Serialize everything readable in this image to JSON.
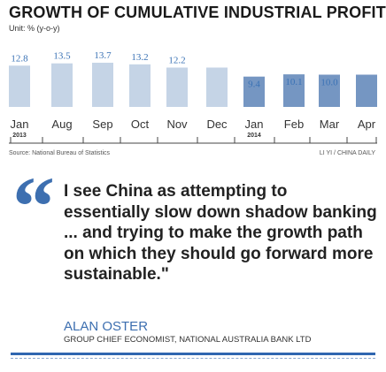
{
  "chart_data": {
    "type": "bar",
    "title": "GROWTH OF CUMULATIVE INDUSTRIAL PROFITS",
    "unit_label": "Unit: % (y-o-y)",
    "categories": [
      "Jan",
      "Aug",
      "Sep",
      "Oct",
      "Nov",
      "Dec",
      "Jan",
      "Feb",
      "Mar",
      "Apr"
    ],
    "year_labels": [
      {
        "index": 0,
        "label": "2013"
      },
      {
        "index": 6,
        "label": "2014"
      }
    ],
    "values": [
      12.8,
      13.5,
      13.7,
      13.2,
      12.2,
      12.2,
      9.4,
      10.1,
      10.0,
      10.0
    ],
    "value_labels": [
      "12.8",
      "13.5",
      "13.7",
      "13.2",
      "12.2",
      "",
      "9.4",
      "10.1",
      "10.0",
      ""
    ],
    "ylim": [
      0,
      16
    ],
    "grid": false,
    "colors": {
      "bar_2013": "#c5d4e6",
      "bar_2014": "#7596c2",
      "bar_label": "#3a72b5"
    }
  },
  "source": "Source: National Bureau of Statistics",
  "credit": "LI YI / CHINA DAILY",
  "quote": {
    "lines": [
      "I see China as attempting to",
      "essentially slow down shadow banking",
      "... and trying to make the growth path",
      "on which they should go forward more",
      "sustainable.\""
    ]
  },
  "author": "ALAN OSTER",
  "role": "GROUP CHIEF ECONOMIST, NATIONAL AUSTRALIA BANK LTD",
  "colors": {
    "accent": "#3d6fb0",
    "rule": "#2f66b0"
  }
}
